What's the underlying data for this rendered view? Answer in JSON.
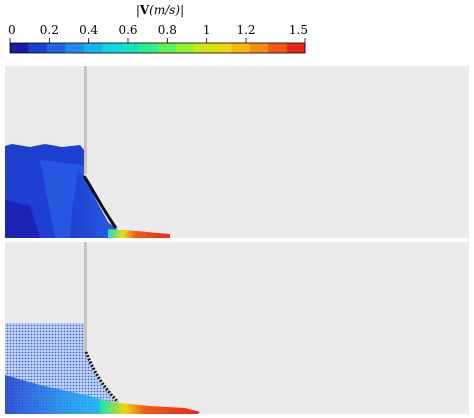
{
  "colorbar": {
    "title_bar_open": "|",
    "title_bold": "V",
    "title_units": "(m/s)",
    "title_bar_close": "|",
    "min": 0,
    "max": 1.5,
    "ticks": [
      {
        "value": 0,
        "label": "0"
      },
      {
        "value": 0.2,
        "label": "0.2"
      },
      {
        "value": 0.4,
        "label": "0.4"
      },
      {
        "value": 0.6,
        "label": "0.6"
      },
      {
        "value": 0.8,
        "label": "0.8"
      },
      {
        "value": 1.0,
        "label": "1"
      },
      {
        "value": 1.2,
        "label": "1.2"
      },
      {
        "value": 1.5,
        "label": "1.5"
      }
    ],
    "colors": [
      "#1a1aa8",
      "#1f3fd0",
      "#2564e6",
      "#1e8df0",
      "#14b4f0",
      "#10d4e0",
      "#12e6b8",
      "#2cf08c",
      "#5ef25a",
      "#94ef2e",
      "#c8ea12",
      "#ecd80a",
      "#fdb40c",
      "#fb8a12",
      "#f45a16",
      "#e8281a"
    ]
  },
  "panels": [
    {
      "name": "top-panel",
      "background": "#ebebeb",
      "gate": "#c8c4bc"
    },
    {
      "name": "bottom-panel",
      "background": "#ebebeb",
      "gate": "#c8c4bc"
    }
  ]
}
